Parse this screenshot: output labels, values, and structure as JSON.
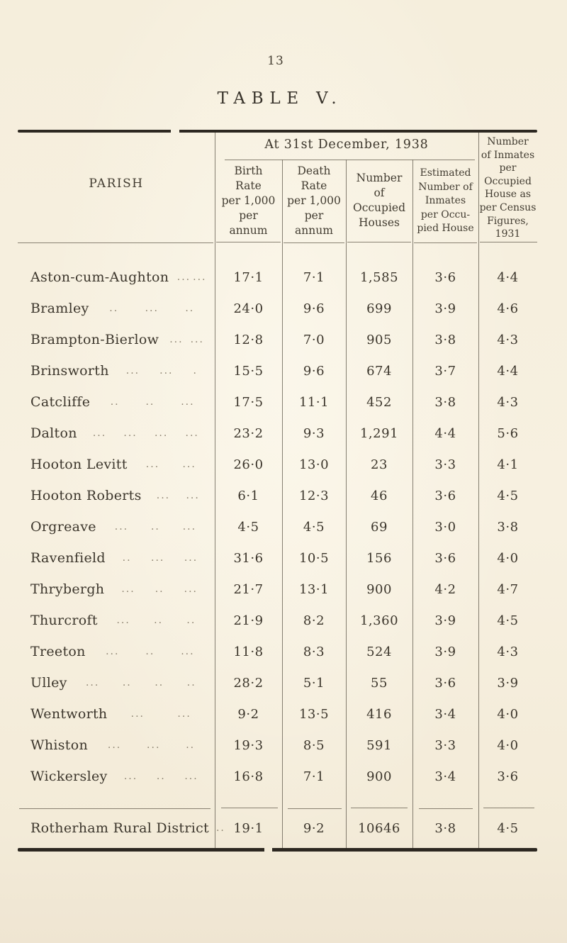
{
  "page": {
    "number": "13",
    "title": "TABLE V.",
    "background_color": "#f6efdf",
    "ink_color": "#3c362c"
  },
  "table": {
    "date_header": "At 31st December, 1938",
    "headers": {
      "parish": "PARISH",
      "birth_rate": "Birth\nRate\nper 1,000\nper\nannum",
      "death_rate": "Death\nRate\nper 1,000\nper\nannum",
      "occupied_houses": "Number\nof\nOccupied\nHouses",
      "inmates_per_house": "Estimated\nNumber of\nInmates\nper Occu-\npied House",
      "census_1931": "Number\nof Inmates\nper\nOccupied\nHouse as\nper Census\nFigures,\n1931"
    },
    "rows": [
      {
        "name": "Aston-cum-Aughton",
        "leaders": "... ...",
        "birth": "17·1",
        "death": "7·1",
        "houses": "1,585",
        "inmates": "3·6",
        "census": "4·4"
      },
      {
        "name": "Bramley",
        "leaders": ".. ... ..",
        "birth": "24·0",
        "death": "9·6",
        "houses": "699",
        "inmates": "3·9",
        "census": "4·6"
      },
      {
        "name": "Brampton-Bierlow",
        "leaders": "... ...",
        "birth": "12·8",
        "death": "7·0",
        "houses": "905",
        "inmates": "3·8",
        "census": "4·3"
      },
      {
        "name": "Brinsworth",
        "leaders": "... ... .",
        "birth": "15·5",
        "death": "9·6",
        "houses": "674",
        "inmates": "3·7",
        "census": "4·4"
      },
      {
        "name": "Catcliffe",
        "leaders": ".. .. ...",
        "birth": "17·5",
        "death": "11·1",
        "houses": "452",
        "inmates": "3·8",
        "census": "4·3"
      },
      {
        "name": "Dalton",
        "leaders": "... ... ... ...",
        "birth": "23·2",
        "death": "9·3",
        "houses": "1,291",
        "inmates": "4·4",
        "census": "5·6"
      },
      {
        "name": "Hooton Levitt",
        "leaders": "... ...",
        "birth": "26·0",
        "death": "13·0",
        "houses": "23",
        "inmates": "3·3",
        "census": "4·1"
      },
      {
        "name": "Hooton Roberts",
        "leaders": "... ...",
        "birth": "6·1",
        "death": "12·3",
        "houses": "46",
        "inmates": "3·6",
        "census": "4·5"
      },
      {
        "name": "Orgreave",
        "leaders": "... .. ...",
        "birth": "4·5",
        "death": "4·5",
        "houses": "69",
        "inmates": "3·0",
        "census": "3·8"
      },
      {
        "name": "Ravenfield",
        "leaders": ".. ... ...",
        "birth": "31·6",
        "death": "10·5",
        "houses": "156",
        "inmates": "3·6",
        "census": "4·0"
      },
      {
        "name": "Thrybergh",
        "leaders": "... .. ...",
        "birth": "21·7",
        "death": "13·1",
        "houses": "900",
        "inmates": "4·2",
        "census": "4·7"
      },
      {
        "name": "Thurcroft",
        "leaders": "... .. ..",
        "birth": "21·9",
        "death": "8·2",
        "houses": "1,360",
        "inmates": "3·9",
        "census": "4·5"
      },
      {
        "name": "Treeton",
        "leaders": "... .. ...",
        "birth": "11·8",
        "death": "8·3",
        "houses": "524",
        "inmates": "3·9",
        "census": "4·3"
      },
      {
        "name": "Ulley",
        "leaders": "... .. .. ..",
        "birth": "28·2",
        "death": "5·1",
        "houses": "55",
        "inmates": "3·6",
        "census": "3·9"
      },
      {
        "name": "Wentworth",
        "leaders": "... ...",
        "birth": "9·2",
        "death": "13·5",
        "houses": "416",
        "inmates": "3·4",
        "census": "4·0"
      },
      {
        "name": "Whiston",
        "leaders": "... ... ..",
        "birth": "19·3",
        "death": "8·5",
        "houses": "591",
        "inmates": "3·3",
        "census": "4·0"
      },
      {
        "name": "Wickersley",
        "leaders": "... .. ...",
        "birth": "16·8",
        "death": "7·1",
        "houses": "900",
        "inmates": "3·4",
        "census": "3·6"
      }
    ],
    "totals": {
      "name": "Rotherham Rural District",
      "leaders": ". .",
      "birth": "19·1",
      "death": "9·2",
      "houses": "10646",
      "inmates": "3·8",
      "census": "4·5"
    }
  }
}
